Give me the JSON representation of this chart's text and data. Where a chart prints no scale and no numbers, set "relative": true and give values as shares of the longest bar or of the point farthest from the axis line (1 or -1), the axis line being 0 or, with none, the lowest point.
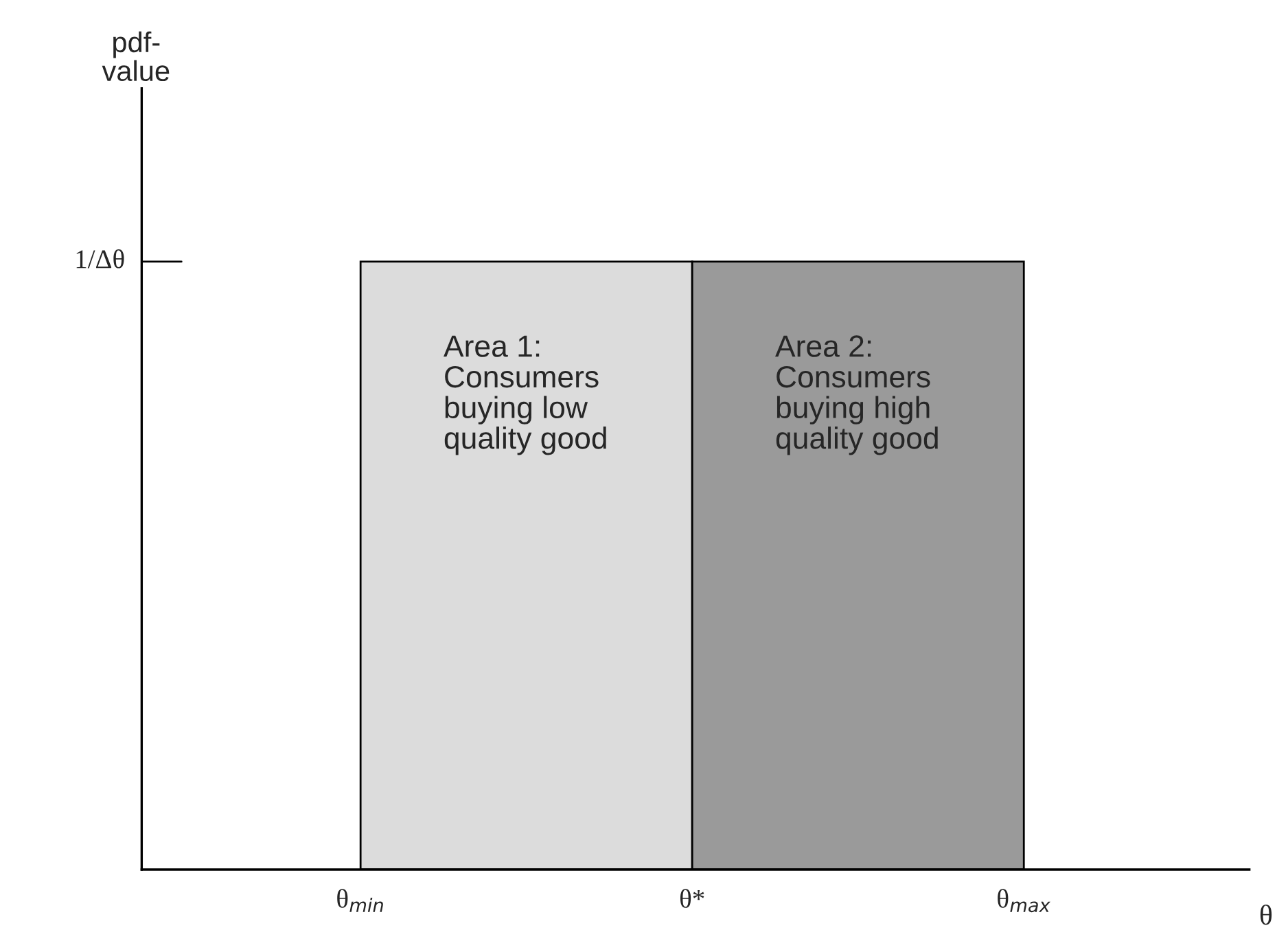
{
  "chart_data": {
    "type": "bar",
    "relative": true,
    "categories": [
      null,
      null
    ],
    "values": [
      1,
      1
    ],
    "colors": [
      "#dcdcdc",
      "#9a9a9a"
    ],
    "xlabel": "θ",
    "annotations": [
      "Area 1:\nConsumers\nbuying low\nquality good",
      "Area 2:\nConsumers\nbuying high\nquality good",
      "1/Δθ",
      "θ$_{min}$",
      "θ*",
      "θ$_{max}$",
      "pdf-\nvalue"
    ],
    "grid": false
  }
}
